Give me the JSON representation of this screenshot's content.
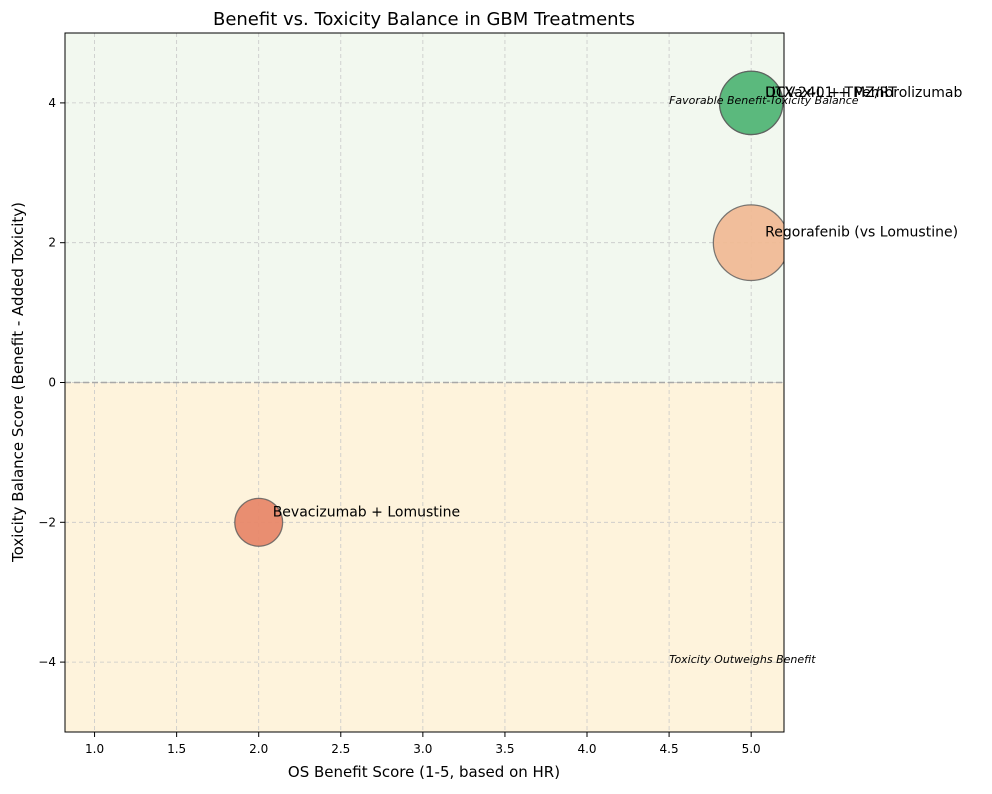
{
  "chart_data": {
    "type": "scatter",
    "title": "Benefit vs. Toxicity Balance in GBM Treatments",
    "xlabel": "OS Benefit Score (1-5, based on HR)",
    "ylabel": "Toxicity Balance Score (Benefit - Added Toxicity)",
    "xlim": [
      0.82,
      5.2
    ],
    "ylim": [
      -5,
      5
    ],
    "xticks": [
      1.0,
      1.5,
      2.0,
      2.5,
      3.0,
      3.5,
      4.0,
      4.5,
      5.0
    ],
    "xtick_labels": [
      "1.0",
      "1.5",
      "2.0",
      "2.5",
      "3.0",
      "3.5",
      "4.0",
      "4.5",
      "5.0"
    ],
    "yticks": [
      -4,
      -2,
      0,
      2,
      4
    ],
    "ytick_labels": [
      "−4",
      "−2",
      "0",
      "2",
      "4"
    ],
    "grid": true,
    "reference_line_y": 0,
    "regions": [
      {
        "from": 0,
        "to": 5,
        "color": "#f2f8ef"
      },
      {
        "from": -5,
        "to": 0,
        "color": "#fef3dc"
      }
    ],
    "annotations": [
      {
        "text": "Favorable Benefit-Toxicity Balance",
        "x": 4.5,
        "y": 4.0
      },
      {
        "text": "Toxicity Outweighs Benefit",
        "x": 4.5,
        "y": -4.0
      }
    ],
    "points": [
      {
        "label": "Bevacizumab + Lomustine",
        "x": 2.0,
        "y": -2.0,
        "size": 0.4,
        "color": "#e8886a"
      },
      {
        "label": "Regorafenib (vs Lomustine)",
        "x": 5.0,
        "y": 2.0,
        "size": 1.0,
        "color": "#f0bb96"
      },
      {
        "label": "DCVax-L + TMZ/RT",
        "x": 5.0,
        "y": 4.0,
        "size": 0.7,
        "color": "#5bb87c"
      },
      {
        "label": "UTX-2401 + Pembrolizumab",
        "x": 5.0,
        "y": 4.0,
        "size": 0.7,
        "color": "#5bb87c"
      }
    ]
  }
}
